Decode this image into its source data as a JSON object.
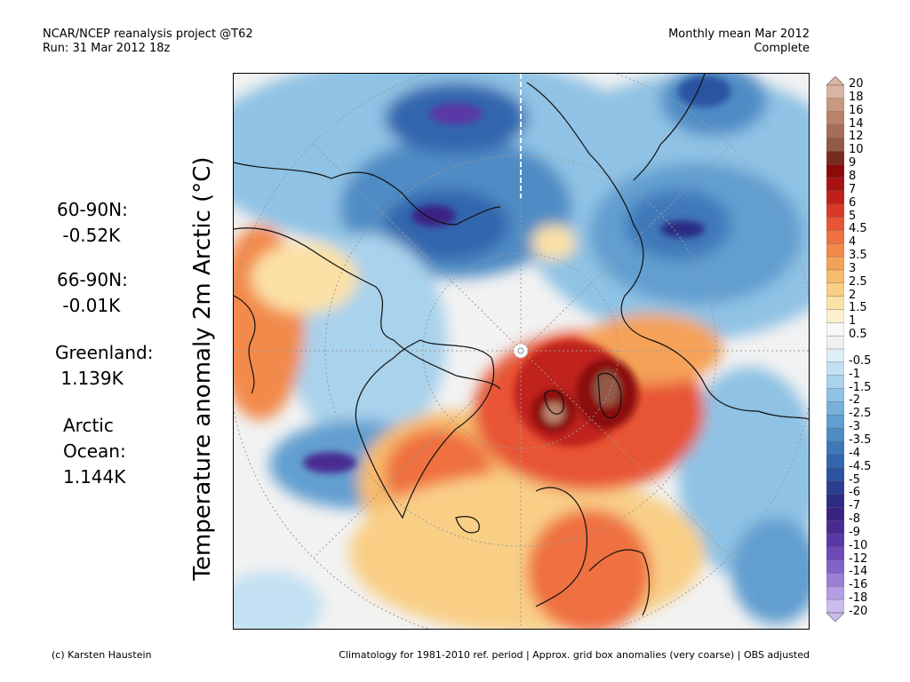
{
  "header": {
    "left_line1": "NCAR/NCEP reanalysis project @T62",
    "left_line2": "Run: 31 Mar 2012 18z",
    "right_line1": "Monthly mean Mar 2012",
    "right_line2": "Complete"
  },
  "y_axis_label": "Temperature anomaly 2m Arctic (°C)",
  "stats": [
    {
      "region": "60-90N:",
      "value": " -0.52K"
    },
    {
      "region": "66-90N:",
      "value": " -0.01K"
    },
    {
      "region": "Greenland:",
      "value": " 1.139K"
    },
    {
      "region": "Arctic",
      "region2": "Ocean:",
      "value": "1.144K"
    }
  ],
  "colorbar": {
    "labels": [
      "20",
      "18",
      "16",
      "14",
      "12",
      "10",
      "9",
      "8",
      "7",
      "6",
      "5",
      "4.5",
      "4",
      "3.5",
      "3",
      "2.5",
      "2",
      "1.5",
      "1",
      "0.5",
      "-0.5",
      "-1",
      "-1.5",
      "-2",
      "-2.5",
      "-3",
      "-3.5",
      "-4",
      "-4.5",
      "-5",
      "-6",
      "-7",
      "-8",
      "-9",
      "-10",
      "-12",
      "-14",
      "-16",
      "-18",
      "-20"
    ],
    "colors": [
      "#d9b3a3",
      "#c9997f",
      "#b8836a",
      "#a56e58",
      "#925a46",
      "#7a2b1f",
      "#8b0a0a",
      "#a81212",
      "#c0201c",
      "#d93a28",
      "#e85535",
      "#ef7040",
      "#f28a4c",
      "#f5a259",
      "#f7bb6c",
      "#f9cf86",
      "#fbe1a6",
      "#fdf0cc",
      "#f7f7f7",
      "#f0f0f0",
      "#dceef8",
      "#c3e1f2",
      "#a9d2ec",
      "#8fc2e4",
      "#77b1da",
      "#629fd0",
      "#4f8cc5",
      "#3f79ba",
      "#3366ad",
      "#2b53a0",
      "#2a3f91",
      "#2c2c83",
      "#3a2382",
      "#4a2a91",
      "#5a38a6",
      "#6d4ab8",
      "#8262c8",
      "#9a7fd6",
      "#b39de3",
      "#cdbcee"
    ]
  },
  "footer": {
    "left": "(c) Karsten Haustein",
    "right": "Climatology for 1981-2010 ref. period | Approx. grid box anomalies (very coarse) | OBS adjusted"
  },
  "map": {
    "ocean_base": "#f2f2f2",
    "warm_core": "#9b1b12",
    "cold_core": "#3b2a8f"
  }
}
